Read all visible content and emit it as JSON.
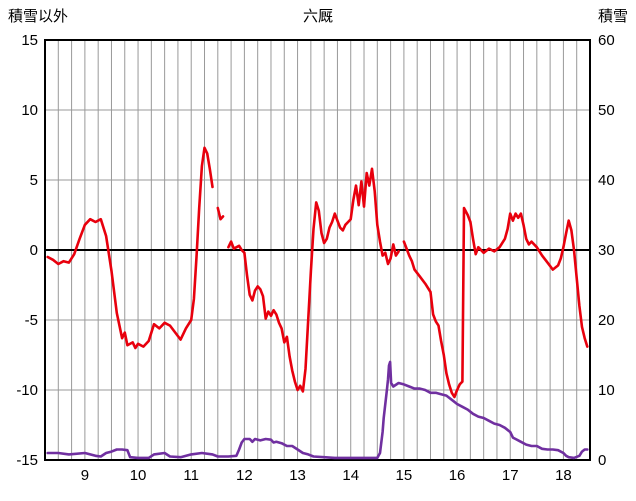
{
  "header": {
    "left_axis_title": "積雪以外",
    "title": "六厩",
    "right_axis_title": "積雪"
  },
  "chart_data": {
    "type": "line",
    "title": "六厩",
    "legend": "none",
    "grid": true,
    "grid_color": "#999999",
    "zero_line_color": "#000000",
    "frame_color": "#000000",
    "x_axis": {
      "min": 8.25,
      "max": 18.5,
      "tick_labels": [
        9,
        10,
        11,
        12,
        13,
        14,
        15,
        16,
        17,
        18
      ],
      "gridline_interval": 0.25
    },
    "left_axis": {
      "label": "積雪以外",
      "min": -15,
      "max": 15,
      "ticks": [
        15,
        10,
        5,
        0,
        -5,
        -10,
        -15
      ]
    },
    "right_axis": {
      "label": "積雪",
      "min": 0,
      "max": 60,
      "ticks": [
        60,
        50,
        40,
        30,
        20,
        10,
        0
      ]
    },
    "series": [
      {
        "name": "積雪以外",
        "axis": "left",
        "color": "#e8000d",
        "width": 2.6,
        "points": [
          [
            8.3,
            -0.5
          ],
          [
            8.4,
            -0.7
          ],
          [
            8.5,
            -1.0
          ],
          [
            8.6,
            -0.8
          ],
          [
            8.7,
            -0.9
          ],
          [
            8.8,
            -0.3
          ],
          [
            8.9,
            0.8
          ],
          [
            9.0,
            1.8
          ],
          [
            9.1,
            2.2
          ],
          [
            9.2,
            2.0
          ],
          [
            9.3,
            2.2
          ],
          [
            9.4,
            1.0
          ],
          [
            9.5,
            -1.5
          ],
          [
            9.6,
            -4.5
          ],
          [
            9.7,
            -6.3
          ],
          [
            9.75,
            -5.9
          ],
          [
            9.8,
            -6.8
          ],
          [
            9.9,
            -6.6
          ],
          [
            9.95,
            -7.0
          ],
          [
            10.0,
            -6.7
          ],
          [
            10.1,
            -6.9
          ],
          [
            10.2,
            -6.5
          ],
          [
            10.3,
            -5.3
          ],
          [
            10.4,
            -5.6
          ],
          [
            10.5,
            -5.2
          ],
          [
            10.6,
            -5.4
          ],
          [
            10.7,
            -5.9
          ],
          [
            10.8,
            -6.4
          ],
          [
            10.9,
            -5.6
          ],
          [
            11.0,
            -5.0
          ],
          [
            11.05,
            -3.5
          ],
          [
            11.1,
            -0.5
          ],
          [
            11.15,
            3.0
          ],
          [
            11.2,
            6.0
          ],
          [
            11.25,
            7.3
          ],
          [
            11.3,
            6.9
          ],
          [
            11.35,
            5.8
          ],
          [
            11.4,
            4.5
          ],
          null,
          [
            11.5,
            3.0
          ],
          [
            11.55,
            2.2
          ],
          [
            11.6,
            2.4
          ],
          null,
          [
            11.7,
            0.2
          ],
          [
            11.75,
            0.6
          ],
          [
            11.8,
            0.1
          ],
          [
            11.9,
            0.3
          ],
          [
            11.95,
            0.0
          ],
          [
            12.0,
            -0.2
          ],
          [
            12.05,
            -1.8
          ],
          [
            12.1,
            -3.2
          ],
          [
            12.15,
            -3.6
          ],
          [
            12.2,
            -2.9
          ],
          [
            12.25,
            -2.6
          ],
          [
            12.3,
            -2.8
          ],
          [
            12.35,
            -3.3
          ],
          [
            12.4,
            -4.9
          ],
          [
            12.45,
            -4.4
          ],
          [
            12.5,
            -4.7
          ],
          [
            12.55,
            -4.3
          ],
          [
            12.6,
            -4.6
          ],
          [
            12.65,
            -5.2
          ],
          [
            12.7,
            -5.6
          ],
          [
            12.75,
            -6.6
          ],
          [
            12.8,
            -6.2
          ],
          [
            12.85,
            -7.6
          ],
          [
            12.9,
            -8.6
          ],
          [
            12.95,
            -9.4
          ],
          [
            13.0,
            -10.0
          ],
          [
            13.05,
            -9.7
          ],
          [
            13.1,
            -10.1
          ],
          [
            13.15,
            -8.5
          ],
          [
            13.2,
            -5.0
          ],
          [
            13.25,
            -1.5
          ],
          [
            13.3,
            1.5
          ],
          [
            13.35,
            3.4
          ],
          [
            13.4,
            2.8
          ],
          [
            13.45,
            1.2
          ],
          [
            13.5,
            0.5
          ],
          [
            13.55,
            0.8
          ],
          [
            13.6,
            1.6
          ],
          [
            13.65,
            2.0
          ],
          [
            13.7,
            2.6
          ],
          [
            13.75,
            2.1
          ],
          [
            13.8,
            1.6
          ],
          [
            13.85,
            1.4
          ],
          [
            13.9,
            1.8
          ],
          [
            13.95,
            2.0
          ],
          [
            14.0,
            2.2
          ],
          [
            14.05,
            3.6
          ],
          [
            14.1,
            4.6
          ],
          [
            14.15,
            3.2
          ],
          [
            14.2,
            4.9
          ],
          [
            14.25,
            3.1
          ],
          [
            14.3,
            5.5
          ],
          [
            14.35,
            4.6
          ],
          [
            14.4,
            5.8
          ],
          [
            14.45,
            4.2
          ],
          [
            14.5,
            1.8
          ],
          [
            14.55,
            0.6
          ],
          [
            14.6,
            -0.4
          ],
          [
            14.65,
            -0.2
          ],
          [
            14.7,
            -1.0
          ],
          [
            14.75,
            -0.6
          ],
          [
            14.8,
            0.4
          ],
          [
            14.85,
            -0.4
          ],
          [
            14.9,
            -0.1
          ],
          null,
          [
            15.0,
            0.6
          ],
          [
            15.05,
            0.1
          ],
          [
            15.1,
            -0.4
          ],
          [
            15.15,
            -0.8
          ],
          [
            15.2,
            -1.4
          ],
          [
            15.3,
            -1.9
          ],
          [
            15.4,
            -2.4
          ],
          [
            15.5,
            -3.0
          ],
          [
            15.55,
            -4.6
          ],
          [
            15.6,
            -5.1
          ],
          [
            15.65,
            -5.4
          ],
          [
            15.7,
            -6.5
          ],
          [
            15.75,
            -7.5
          ],
          [
            15.8,
            -8.8
          ],
          [
            15.85,
            -9.6
          ],
          [
            15.9,
            -10.2
          ],
          [
            15.95,
            -10.5
          ],
          [
            16.0,
            -10.0
          ],
          [
            16.05,
            -9.6
          ],
          [
            16.1,
            -9.4
          ],
          [
            16.13,
            3.0
          ],
          [
            16.2,
            2.5
          ],
          [
            16.25,
            2.0
          ],
          [
            16.3,
            0.8
          ],
          [
            16.35,
            -0.3
          ],
          [
            16.4,
            0.2
          ],
          [
            16.5,
            -0.2
          ],
          [
            16.6,
            0.1
          ],
          [
            16.7,
            -0.1
          ],
          [
            16.8,
            0.2
          ],
          [
            16.9,
            0.8
          ],
          [
            16.95,
            1.5
          ],
          [
            17.0,
            2.6
          ],
          [
            17.05,
            2.1
          ],
          [
            17.1,
            2.6
          ],
          [
            17.15,
            2.3
          ],
          [
            17.2,
            2.6
          ],
          [
            17.25,
            1.8
          ],
          [
            17.3,
            0.8
          ],
          [
            17.35,
            0.4
          ],
          [
            17.4,
            0.6
          ],
          [
            17.5,
            0.2
          ],
          [
            17.6,
            -0.4
          ],
          [
            17.7,
            -0.9
          ],
          [
            17.8,
            -1.4
          ],
          [
            17.9,
            -1.1
          ],
          [
            17.95,
            -0.6
          ],
          [
            18.0,
            0.2
          ],
          [
            18.05,
            1.2
          ],
          [
            18.1,
            2.1
          ],
          [
            18.15,
            1.4
          ],
          [
            18.2,
            0.0
          ],
          [
            18.25,
            -2.0
          ],
          [
            18.3,
            -4.0
          ],
          [
            18.35,
            -5.5
          ],
          [
            18.4,
            -6.3
          ],
          [
            18.45,
            -6.9
          ]
        ]
      },
      {
        "name": "積雪",
        "axis": "right",
        "color": "#7030a0",
        "width": 2.6,
        "points": [
          [
            8.3,
            1.0
          ],
          [
            8.5,
            1.0
          ],
          [
            8.7,
            0.8
          ],
          [
            9.0,
            1.0
          ],
          [
            9.2,
            0.6
          ],
          [
            9.3,
            0.5
          ],
          [
            9.4,
            1.0
          ],
          [
            9.5,
            1.2
          ],
          [
            9.6,
            1.5
          ],
          [
            9.7,
            1.5
          ],
          [
            9.8,
            1.4
          ],
          [
            9.85,
            0.4
          ],
          [
            10.0,
            0.3
          ],
          [
            10.2,
            0.3
          ],
          [
            10.3,
            0.8
          ],
          [
            10.5,
            1.0
          ],
          [
            10.6,
            0.5
          ],
          [
            10.8,
            0.4
          ],
          [
            11.0,
            0.8
          ],
          [
            11.2,
            1.0
          ],
          [
            11.4,
            0.8
          ],
          [
            11.5,
            0.5
          ],
          [
            11.7,
            0.5
          ],
          [
            11.85,
            0.6
          ],
          [
            11.9,
            1.5
          ],
          [
            11.95,
            2.5
          ],
          [
            12.0,
            3.0
          ],
          [
            12.1,
            3.0
          ],
          [
            12.15,
            2.6
          ],
          [
            12.2,
            3.0
          ],
          [
            12.3,
            2.8
          ],
          [
            12.4,
            3.0
          ],
          [
            12.5,
            2.9
          ],
          [
            12.55,
            2.5
          ],
          [
            12.6,
            2.6
          ],
          [
            12.7,
            2.4
          ],
          [
            12.8,
            2.0
          ],
          [
            12.9,
            2.0
          ],
          [
            13.0,
            1.5
          ],
          [
            13.1,
            1.0
          ],
          [
            13.2,
            0.8
          ],
          [
            13.3,
            0.5
          ],
          [
            13.5,
            0.4
          ],
          [
            13.7,
            0.3
          ],
          [
            14.0,
            0.3
          ],
          [
            14.3,
            0.3
          ],
          [
            14.5,
            0.3
          ],
          [
            14.55,
            1.0
          ],
          [
            14.6,
            4.0
          ],
          [
            14.62,
            6.0
          ],
          [
            14.65,
            8.0
          ],
          [
            14.68,
            10.0
          ],
          [
            14.7,
            11.5
          ],
          [
            14.72,
            13.5
          ],
          [
            14.74,
            14.0
          ],
          [
            14.76,
            11.0
          ],
          [
            14.8,
            10.5
          ],
          [
            14.9,
            11.0
          ],
          [
            15.0,
            10.8
          ],
          [
            15.1,
            10.5
          ],
          [
            15.2,
            10.2
          ],
          [
            15.3,
            10.2
          ],
          [
            15.4,
            10.0
          ],
          [
            15.5,
            9.6
          ],
          [
            15.6,
            9.6
          ],
          [
            15.7,
            9.4
          ],
          [
            15.8,
            9.2
          ],
          [
            15.9,
            8.6
          ],
          [
            16.0,
            8.0
          ],
          [
            16.1,
            7.6
          ],
          [
            16.2,
            7.2
          ],
          [
            16.3,
            6.6
          ],
          [
            16.4,
            6.2
          ],
          [
            16.5,
            6.0
          ],
          [
            16.6,
            5.6
          ],
          [
            16.7,
            5.2
          ],
          [
            16.8,
            5.0
          ],
          [
            16.9,
            4.6
          ],
          [
            17.0,
            4.0
          ],
          [
            17.05,
            3.2
          ],
          [
            17.1,
            3.0
          ],
          [
            17.2,
            2.6
          ],
          [
            17.3,
            2.2
          ],
          [
            17.4,
            2.0
          ],
          [
            17.5,
            2.0
          ],
          [
            17.6,
            1.6
          ],
          [
            17.7,
            1.5
          ],
          [
            17.8,
            1.5
          ],
          [
            17.9,
            1.4
          ],
          [
            18.0,
            1.0
          ],
          [
            18.05,
            0.6
          ],
          [
            18.1,
            0.4
          ],
          [
            18.2,
            0.3
          ],
          [
            18.3,
            0.6
          ],
          [
            18.35,
            1.2
          ],
          [
            18.4,
            1.5
          ],
          [
            18.45,
            1.5
          ]
        ]
      }
    ]
  }
}
